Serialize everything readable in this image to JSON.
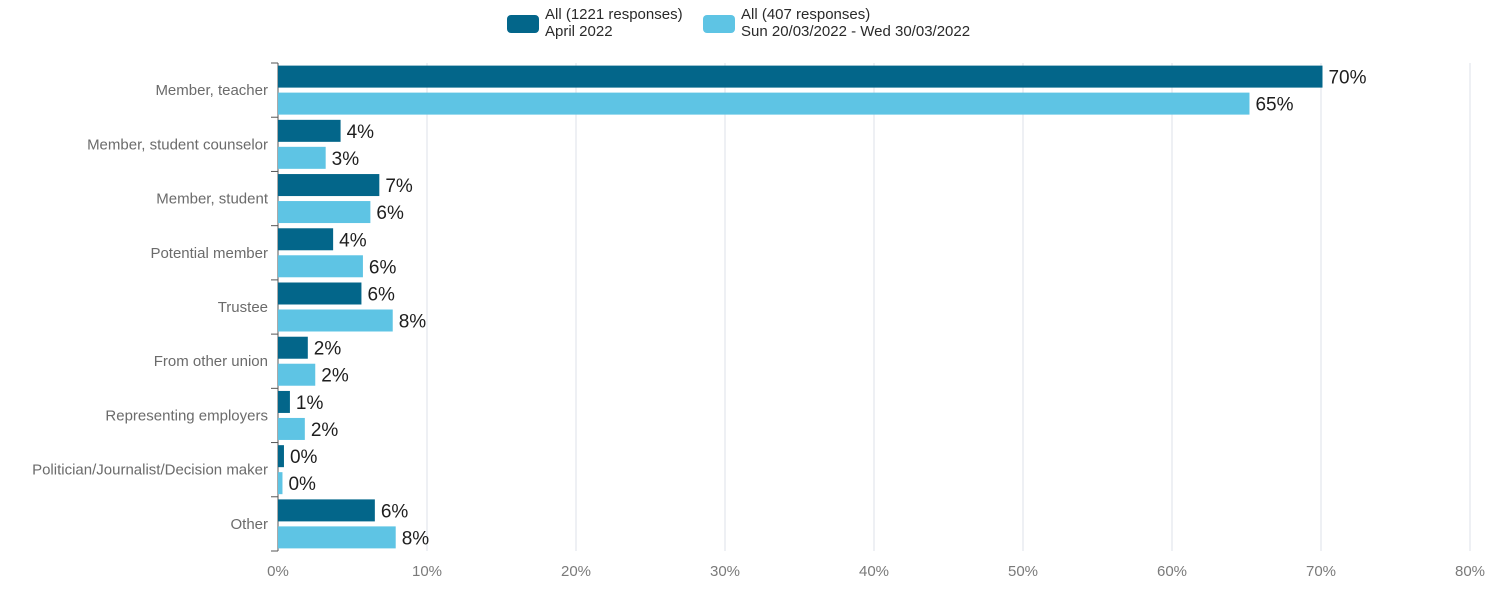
{
  "chart_data": {
    "type": "bar",
    "orientation": "horizontal",
    "categories": [
      "Member, teacher",
      "Member, student counselor",
      "Member, student",
      "Potential member",
      "Trustee",
      "From other union",
      "Representing employers",
      "Politician/Journalist/Decision maker",
      "Other"
    ],
    "series": [
      {
        "name_lines": [
          "All (1221 responses)",
          "April 2022"
        ],
        "color": "#03668a",
        "values": [
          70.1,
          4.2,
          6.8,
          3.7,
          5.6,
          2.0,
          0.8,
          0.4,
          6.5
        ],
        "labels": [
          "70%",
          "4%",
          "7%",
          "4%",
          "6%",
          "2%",
          "1%",
          "0%",
          "6%"
        ]
      },
      {
        "name_lines": [
          "All (407 responses)",
          "Sun 20/03/2022 - Wed 30/03/2022"
        ],
        "color": "#5ec4e4",
        "values": [
          65.2,
          3.2,
          6.2,
          5.7,
          7.7,
          2.5,
          1.8,
          0.3,
          7.9
        ],
        "labels": [
          "65%",
          "3%",
          "6%",
          "6%",
          "8%",
          "2%",
          "2%",
          "0%",
          "8%"
        ]
      }
    ],
    "xlim": [
      0,
      80
    ],
    "xticks": [
      0,
      10,
      20,
      30,
      40,
      50,
      60,
      70,
      80
    ],
    "xtick_labels": [
      "0%",
      "10%",
      "20%",
      "30%",
      "40%",
      "50%",
      "60%",
      "70%",
      "80%"
    ],
    "grid": true,
    "legend_position": "top-center"
  }
}
